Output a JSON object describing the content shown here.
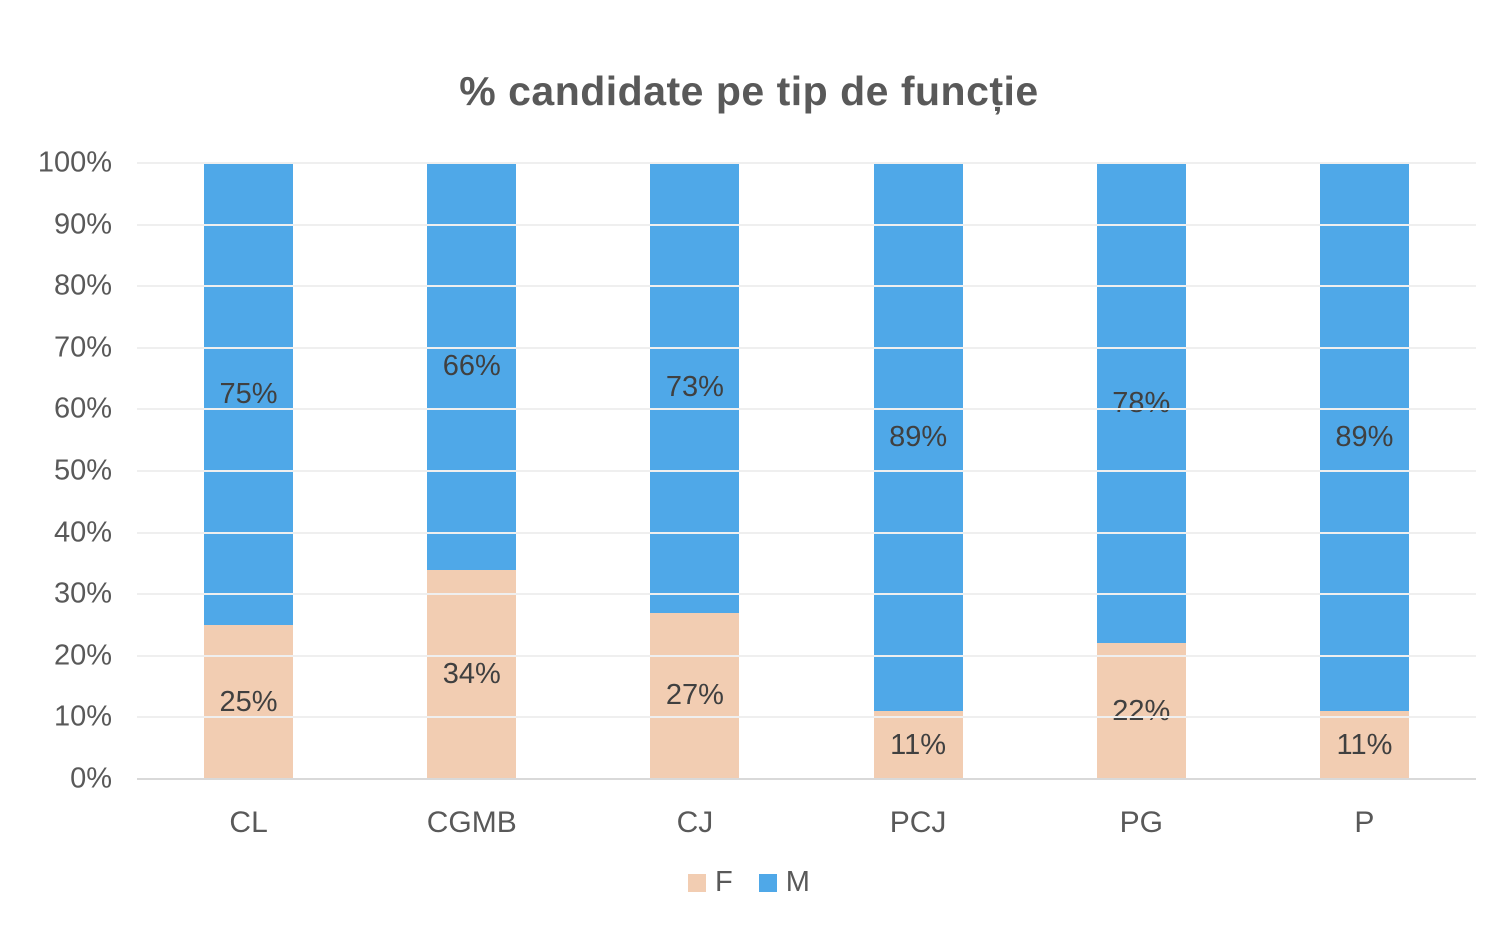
{
  "chart_data": {
    "type": "bar",
    "variant": "stacked-percent-column",
    "title": "% candidate pe tip de funcție",
    "categories": [
      "CL",
      "CGMB",
      "CJ",
      "PCJ",
      "PG",
      "P"
    ],
    "series": [
      {
        "name": "F",
        "color": "#f2cdb2",
        "values": [
          25,
          34,
          27,
          11,
          22,
          11
        ],
        "labels": [
          "25%",
          "34%",
          "27%",
          "11%",
          "22%",
          "11%"
        ]
      },
      {
        "name": "M",
        "color": "#4fa8e8",
        "values": [
          75,
          66,
          73,
          89,
          78,
          89
        ],
        "labels": [
          "75%",
          "66%",
          "73%",
          "89%",
          "78%",
          "89%"
        ]
      }
    ],
    "xlabel": "",
    "ylabel": "",
    "ylim": [
      0,
      100
    ],
    "y_ticks": [
      "0%",
      "10%",
      "20%",
      "30%",
      "40%",
      "50%",
      "60%",
      "70%",
      "80%",
      "90%",
      "100%"
    ],
    "grid": true,
    "legend_position": "bottom",
    "colors": {
      "title_text": "#595959",
      "axis_text": "#595959",
      "data_label_text": "#404040",
      "gridline": "#efefef",
      "axis_line": "#d9d9d9",
      "background": "#ffffff"
    }
  }
}
